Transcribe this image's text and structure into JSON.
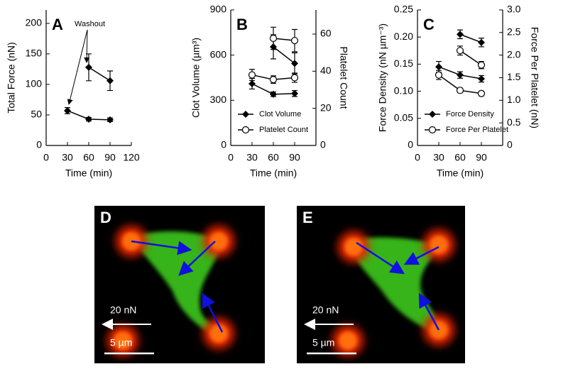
{
  "chart_data": [
    {
      "type": "line",
      "panel_label": "A",
      "xlabel": "Time (min)",
      "ylabel": "Total Force (nN)",
      "x": [
        30,
        60,
        90
      ],
      "xlim": [
        0,
        120
      ],
      "xticks": [
        0,
        30,
        60,
        90,
        120
      ],
      "ylim": [
        0,
        222
      ],
      "yticks": [
        0,
        50,
        100,
        150,
        200
      ],
      "annotation": "Washout",
      "series": [
        {
          "color": "#000000",
          "marker": "diamond",
          "values": [
            57,
            43,
            42
          ],
          "errors": [
            5,
            3,
            3
          ]
        },
        {
          "color": "#000000",
          "marker": "diamond",
          "values": [
            null,
            128,
            106
          ],
          "errors": [
            null,
            22,
            16
          ]
        }
      ]
    },
    {
      "type": "line",
      "panel_label": "B",
      "xlabel": "Time (min)",
      "ylabel": "Clot Volume (µm³)",
      "y2label": "Platelet Count",
      "x": [
        30,
        60,
        90
      ],
      "xlim": [
        0,
        120
      ],
      "xticks": [
        0,
        30,
        60,
        90
      ],
      "ylim": [
        0,
        900
      ],
      "yticks": [
        0,
        300,
        600,
        900
      ],
      "y2lim": [
        0,
        73
      ],
      "y2ticks": [
        0,
        20,
        40,
        60
      ],
      "legend": "lower right",
      "series": [
        {
          "name": "Clot Volume",
          "color": "#000000",
          "marker": "diamond",
          "values": [
            410,
            340,
            345
          ],
          "errors": [
            35,
            15,
            20
          ]
        },
        {
          "name": "Platelet Count",
          "color": "#000000",
          "marker": "circle",
          "axis": "y2",
          "values": [
            38,
            35.5,
            36.5
          ],
          "errors": [
            3,
            2,
            2.5
          ]
        },
        {
          "color": "#000000",
          "marker": "diamond",
          "values": [
            null,
            655,
            545
          ],
          "errors": [
            null,
            80,
            70
          ]
        },
        {
          "color": "#000000",
          "marker": "circle",
          "axis": "y2",
          "values": [
            null,
            57.7,
            56.5
          ],
          "errors": [
            null,
            6,
            6
          ]
        }
      ]
    },
    {
      "type": "line",
      "panel_label": "C",
      "xlabel": "Time (min)",
      "ylabel": "Force Density (nN µm⁻³)",
      "y2label": "Force Per Platelet (nN)",
      "x": [
        30,
        60,
        90
      ],
      "xlim": [
        0,
        120
      ],
      "xticks": [
        0,
        30,
        60,
        90
      ],
      "ylim": [
        0,
        0.25
      ],
      "yticks": [
        0,
        0.05,
        {
          "value": 0.1,
          "label": "0.10"
        },
        0.15,
        {
          "value": 0.2,
          "label": "0.20"
        },
        0.25
      ],
      "y2lim": [
        0,
        3
      ],
      "y2ticks": [
        0,
        0.5,
        {
          "value": 1,
          "label": "1.0"
        },
        1.5,
        {
          "value": 2,
          "label": "2.0"
        },
        2.5,
        {
          "value": 3,
          "label": "3.0"
        }
      ],
      "legend": "lower right",
      "series": [
        {
          "name": "Force Density",
          "color": "#000000",
          "marker": "diamond",
          "values": [
            0.145,
            0.13,
            0.123
          ],
          "errors": [
            0.01,
            0.006,
            0.006
          ]
        },
        {
          "name": "Force Per Platelet",
          "color": "#000000",
          "marker": "circle",
          "axis": "y2",
          "values": [
            1.56,
            1.22,
            1.15
          ],
          "errors": [
            0.1,
            0.05,
            0.05
          ]
        },
        {
          "color": "#000000",
          "marker": "diamond",
          "values": [
            null,
            0.205,
            0.19
          ],
          "errors": [
            null,
            0.008,
            0.008
          ]
        },
        {
          "color": "#000000",
          "marker": "circle",
          "axis": "y2",
          "values": [
            null,
            2.1,
            1.78
          ],
          "errors": [
            null,
            0.1,
            0.08
          ]
        }
      ]
    }
  ],
  "images": [
    {
      "panel_label": "D",
      "force_scale": "20 nN",
      "length_scale": "5 µm"
    },
    {
      "panel_label": "E",
      "force_scale": "20 nN",
      "length_scale": "5 µm"
    }
  ]
}
